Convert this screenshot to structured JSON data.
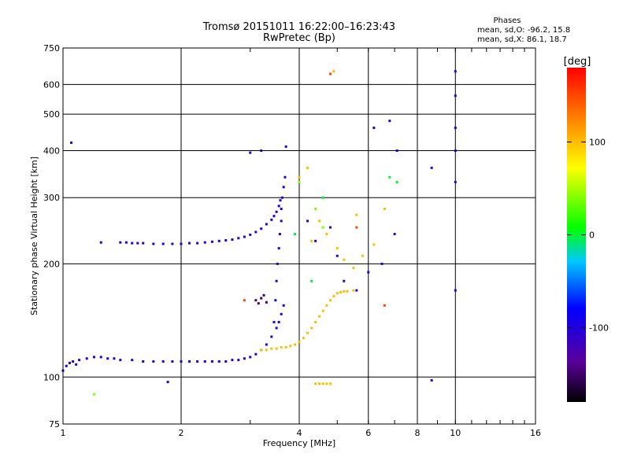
{
  "chart_data": {
    "type": "scatter",
    "title": "Tromsø 20151011 16:22:00–16:23:43",
    "subtitle": "RwPretec (Bp)",
    "xlabel": "Frequency [MHz]",
    "ylabel": "Stationary phase Virtual Height [km]",
    "x_scale": "log",
    "y_scale": "log",
    "xlim": [
      1,
      16
    ],
    "ylim": [
      75,
      750
    ],
    "x_ticks": [
      1,
      2,
      4,
      6,
      8,
      10,
      16
    ],
    "y_ticks": [
      75,
      100,
      200,
      300,
      400,
      500,
      600,
      750
    ],
    "grid": true,
    "stats": {
      "heading": "Phases",
      "line_o": "mean, sd,O: -96.2, 15.8",
      "line_x": "mean, sd,X:  86.1, 18.7"
    },
    "colorbar": {
      "label": "[deg]",
      "ticks": [
        100,
        0,
        -100
      ],
      "range": [
        -180,
        180
      ]
    },
    "series": [
      {
        "phase_deg": -100,
        "x": [
          1.0,
          1.02,
          1.04,
          1.06,
          1.08,
          1.1,
          1.15,
          1.2,
          1.25,
          1.3,
          1.35,
          1.4,
          1.5,
          1.6,
          1.7,
          1.8,
          1.9,
          2.0,
          2.1,
          2.2,
          2.3,
          2.4,
          2.5,
          2.6,
          2.7,
          2.8,
          2.9,
          3.0,
          3.1,
          3.2,
          3.3,
          3.4,
          3.5,
          3.55,
          3.6,
          3.65
        ],
        "y": [
          104,
          107,
          109,
          110,
          108,
          111,
          112,
          113,
          113,
          112,
          112,
          111,
          111,
          110,
          110,
          110,
          110,
          110,
          110,
          110,
          110,
          110,
          110,
          110,
          111,
          111,
          112,
          113,
          115,
          118,
          122,
          128,
          135,
          140,
          147,
          155
        ]
      },
      {
        "phase_deg": -100,
        "x": [
          1.4,
          1.45,
          1.5,
          1.55,
          1.6,
          1.7,
          1.8,
          1.9,
          2.0,
          2.1,
          2.2,
          2.3,
          2.4,
          2.5,
          2.6,
          2.7,
          2.8,
          2.9,
          3.0,
          3.1,
          3.2,
          3.3,
          3.4,
          3.45,
          3.5,
          3.55,
          3.58
        ],
        "y": [
          228,
          228,
          227,
          227,
          227,
          226,
          226,
          226,
          226,
          227,
          227,
          228,
          229,
          230,
          231,
          232,
          234,
          236,
          239,
          243,
          248,
          255,
          262,
          268,
          275,
          285,
          295
        ]
      },
      {
        "phase_deg": -100,
        "x": [
          3.45,
          3.48,
          3.5,
          3.52,
          3.55,
          3.57,
          3.6,
          3.6,
          3.62,
          3.65,
          3.68
        ],
        "y": [
          140,
          160,
          180,
          200,
          220,
          240,
          260,
          280,
          300,
          320,
          340
        ]
      },
      {
        "phase_deg": -100,
        "x": [
          1.05,
          1.25,
          1.85,
          3.0,
          3.2,
          3.7,
          4.2,
          4.4,
          4.8,
          5.0,
          5.2,
          5.6,
          6.0,
          6.2,
          6.5,
          6.8,
          7.0,
          7.1,
          8.7,
          8.7,
          10.0,
          10.0,
          10.0,
          10.0,
          10.0,
          10.0
        ],
        "y": [
          420,
          228,
          97,
          395,
          400,
          410,
          260,
          230,
          250,
          210,
          180,
          170,
          190,
          460,
          200,
          480,
          240,
          400,
          360,
          98,
          650,
          560,
          460,
          400,
          330,
          170
        ]
      },
      {
        "phase_deg": -150,
        "x": [
          3.1,
          3.15,
          3.2,
          3.25,
          3.3
        ],
        "y": [
          160,
          157,
          162,
          165,
          158
        ]
      },
      {
        "phase_deg": 100,
        "x": [
          3.2,
          3.3,
          3.4,
          3.5,
          3.6,
          3.7,
          3.8,
          3.9,
          4.0,
          4.1,
          4.2,
          4.3,
          4.4,
          4.5,
          4.6,
          4.7,
          4.8,
          4.9,
          5.0,
          5.1,
          5.2,
          5.3,
          5.5,
          4.4,
          4.5,
          4.6,
          4.7,
          4.8
        ],
        "y": [
          118,
          118,
          119,
          119,
          120,
          120,
          121,
          122,
          124,
          127,
          131,
          135,
          140,
          145,
          150,
          155,
          160,
          164,
          167,
          168,
          169,
          169,
          170,
          96,
          96,
          96,
          96,
          96
        ]
      },
      {
        "phase_deg": 100,
        "x": [
          4.3,
          4.5,
          4.7,
          5.0,
          5.2,
          5.5,
          5.8,
          6.2,
          6.6,
          4.0,
          4.2,
          4.9,
          5.6
        ],
        "y": [
          230,
          260,
          240,
          220,
          205,
          195,
          210,
          225,
          280,
          340,
          360,
          650,
          270
        ]
      },
      {
        "phase_deg": 40,
        "x": [
          4.0,
          4.4,
          4.6,
          1.2
        ],
        "y": [
          330,
          280,
          250,
          90
        ]
      },
      {
        "phase_deg": 0,
        "x": [
          4.6,
          6.8,
          7.1,
          3.9,
          4.3
        ],
        "y": [
          300,
          340,
          330,
          240,
          180
        ]
      },
      {
        "phase_deg": 150,
        "x": [
          4.8,
          5.6,
          6.6,
          2.9
        ],
        "y": [
          640,
          250,
          155,
          160
        ]
      }
    ]
  }
}
